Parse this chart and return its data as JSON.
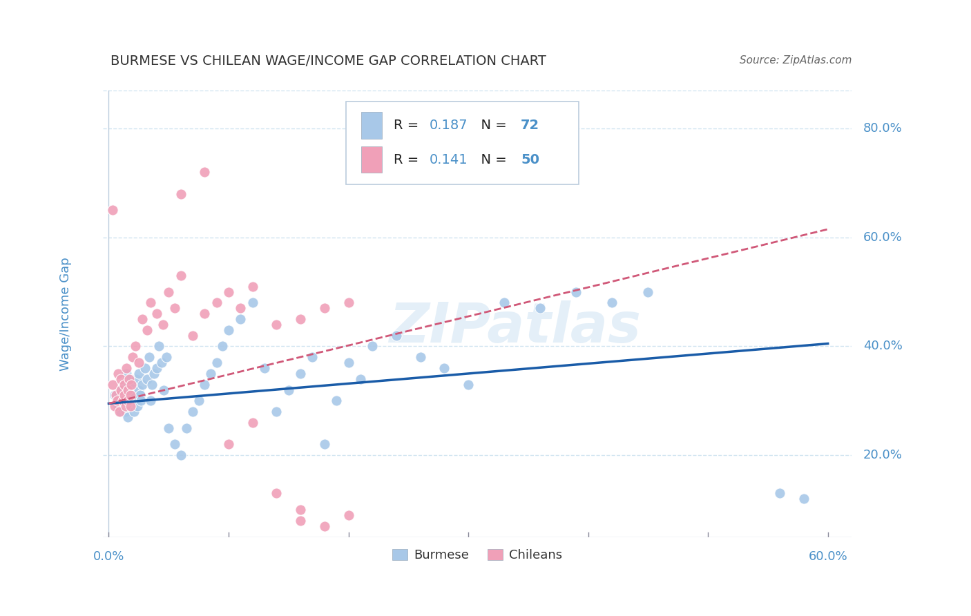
{
  "title": "BURMESE VS CHILEAN WAGE/INCOME GAP CORRELATION CHART",
  "source": "Source: ZipAtlas.com",
  "ylabel": "Wage/Income Gap",
  "xlim": [
    -0.005,
    0.62
  ],
  "ylim": [
    0.05,
    0.87
  ],
  "ytick_positions": [
    0.2,
    0.4,
    0.6,
    0.8
  ],
  "ytick_labels": [
    "20.0%",
    "40.0%",
    "60.0%",
    "80.0%"
  ],
  "xtick_positions": [
    0.0,
    0.1,
    0.2,
    0.3,
    0.4,
    0.5,
    0.6
  ],
  "burmese_color": "#a8c8e8",
  "chilean_color": "#f0a0b8",
  "burmese_line_color": "#1a5ca8",
  "chilean_line_color": "#d05878",
  "burmese_R": 0.187,
  "burmese_N": 72,
  "chilean_R": 0.141,
  "chilean_N": 50,
  "watermark": "ZIPatlas",
  "title_color": "#333333",
  "axis_color": "#4a90c8",
  "grid_color": "#d0e4f0",
  "burmese_x": [
    0.005,
    0.008,
    0.01,
    0.01,
    0.012,
    0.013,
    0.014,
    0.015,
    0.015,
    0.016,
    0.016,
    0.017,
    0.018,
    0.018,
    0.019,
    0.02,
    0.02,
    0.021,
    0.022,
    0.022,
    0.023,
    0.024,
    0.025,
    0.025,
    0.026,
    0.027,
    0.028,
    0.03,
    0.032,
    0.034,
    0.035,
    0.036,
    0.038,
    0.04,
    0.042,
    0.044,
    0.046,
    0.048,
    0.05,
    0.055,
    0.06,
    0.065,
    0.07,
    0.075,
    0.08,
    0.085,
    0.09,
    0.095,
    0.1,
    0.11,
    0.12,
    0.13,
    0.14,
    0.15,
    0.16,
    0.17,
    0.18,
    0.19,
    0.2,
    0.21,
    0.22,
    0.24,
    0.26,
    0.28,
    0.3,
    0.33,
    0.36,
    0.39,
    0.42,
    0.45,
    0.56,
    0.58
  ],
  "burmese_y": [
    0.31,
    0.29,
    0.32,
    0.28,
    0.3,
    0.33,
    0.28,
    0.3,
    0.35,
    0.27,
    0.32,
    0.29,
    0.31,
    0.34,
    0.3,
    0.29,
    0.33,
    0.28,
    0.31,
    0.3,
    0.34,
    0.29,
    0.32,
    0.35,
    0.31,
    0.3,
    0.33,
    0.36,
    0.34,
    0.38,
    0.3,
    0.33,
    0.35,
    0.36,
    0.4,
    0.37,
    0.32,
    0.38,
    0.25,
    0.22,
    0.2,
    0.25,
    0.28,
    0.3,
    0.33,
    0.35,
    0.37,
    0.4,
    0.43,
    0.45,
    0.48,
    0.36,
    0.28,
    0.32,
    0.35,
    0.38,
    0.22,
    0.3,
    0.37,
    0.34,
    0.4,
    0.42,
    0.38,
    0.36,
    0.33,
    0.48,
    0.47,
    0.5,
    0.48,
    0.5,
    0.13,
    0.12
  ],
  "chilean_x": [
    0.003,
    0.005,
    0.006,
    0.007,
    0.008,
    0.009,
    0.01,
    0.01,
    0.012,
    0.013,
    0.013,
    0.014,
    0.015,
    0.016,
    0.016,
    0.017,
    0.018,
    0.018,
    0.019,
    0.02,
    0.022,
    0.025,
    0.028,
    0.032,
    0.035,
    0.04,
    0.045,
    0.05,
    0.055,
    0.06,
    0.07,
    0.08,
    0.09,
    0.1,
    0.11,
    0.12,
    0.14,
    0.16,
    0.18,
    0.2,
    0.06,
    0.08,
    0.1,
    0.12,
    0.14,
    0.16,
    0.18,
    0.2,
    0.003,
    0.16
  ],
  "chilean_y": [
    0.33,
    0.29,
    0.31,
    0.3,
    0.35,
    0.28,
    0.32,
    0.34,
    0.3,
    0.33,
    0.31,
    0.29,
    0.36,
    0.3,
    0.32,
    0.34,
    0.29,
    0.31,
    0.33,
    0.38,
    0.4,
    0.37,
    0.45,
    0.43,
    0.48,
    0.46,
    0.44,
    0.5,
    0.47,
    0.53,
    0.42,
    0.46,
    0.48,
    0.5,
    0.47,
    0.51,
    0.44,
    0.45,
    0.47,
    0.48,
    0.68,
    0.72,
    0.22,
    0.26,
    0.13,
    0.1,
    0.07,
    0.09,
    0.65,
    0.08
  ]
}
